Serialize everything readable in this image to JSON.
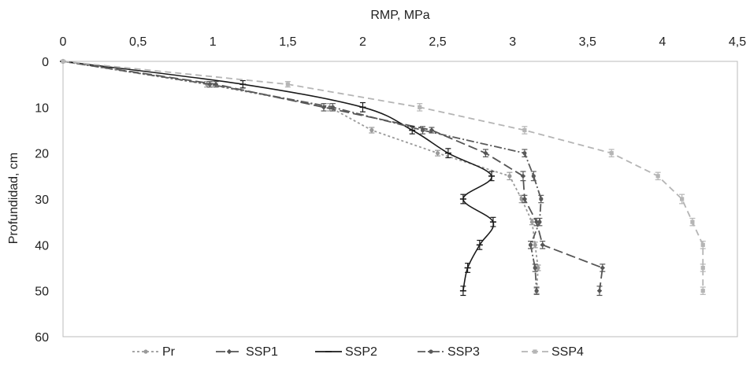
{
  "chart_data": {
    "type": "line",
    "xlabel": "RMP, MPa",
    "ylabel": "Profundidad, cm",
    "xlim": [
      0,
      4.5
    ],
    "ylim": [
      0,
      60
    ],
    "x_ticks": [
      "0",
      "0,5",
      "1",
      "1,5",
      "2",
      "2,5",
      "3",
      "3,5",
      "4",
      "4,5"
    ],
    "x_tick_values": [
      0,
      0.5,
      1,
      1.5,
      2,
      2.5,
      3,
      3.5,
      4,
      4.5
    ],
    "y_ticks": [
      "0",
      "10",
      "20",
      "30",
      "40",
      "50",
      "60"
    ],
    "y_tick_values": [
      0,
      10,
      20,
      30,
      40,
      50,
      60
    ],
    "x_axis_position": "top",
    "y_axis_inverted": true,
    "grid": false,
    "legend_position": "bottom",
    "depth": [
      0,
      5,
      10,
      15,
      20,
      25,
      30,
      35,
      40,
      45,
      50
    ],
    "series": [
      {
        "name": "Pr",
        "color": "#9a9a9a",
        "dash": "3,3",
        "marker": "circle",
        "rmp": [
          0,
          0.96,
          1.78,
          2.06,
          2.5,
          2.98,
          3.06,
          3.13,
          3.15,
          3.17,
          3.16
        ],
        "err": [
          0,
          0.03,
          0.04,
          0.03,
          0.03,
          0.04,
          0.04,
          0.03,
          0.03,
          0.03,
          0.03
        ]
      },
      {
        "name": "SSP1",
        "color": "#555555",
        "dash": "12,5",
        "marker": "diamond",
        "rmp": [
          0,
          1.02,
          1.74,
          2.46,
          2.82,
          3.07,
          3.08,
          3.16,
          3.2,
          3.6,
          3.58
        ],
        "err": [
          0,
          0.03,
          0.04,
          0.03,
          0.04,
          0.05,
          0.04,
          0.04,
          0.04,
          0.04,
          0.05
        ]
      },
      {
        "name": "SSP2",
        "color": "#1a1a1a",
        "dash": "",
        "marker": "dash",
        "rmp": [
          0,
          1.2,
          2.0,
          2.33,
          2.57,
          2.86,
          2.67,
          2.87,
          2.78,
          2.7,
          2.67
        ],
        "err": [
          0,
          0.04,
          0.05,
          0.04,
          0.05,
          0.05,
          0.05,
          0.05,
          0.05,
          0.05,
          0.05
        ]
      },
      {
        "name": "SSP3",
        "color": "#5a5a5a",
        "dash": "10,3,2,3",
        "marker": "circle",
        "rmp": [
          0,
          0.98,
          1.8,
          2.4,
          3.08,
          3.14,
          3.19,
          3.18,
          3.12,
          3.15,
          3.16
        ],
        "err": [
          0,
          0.03,
          0.04,
          0.04,
          0.04,
          0.05,
          0.04,
          0.04,
          0.04,
          0.04,
          0.04
        ]
      },
      {
        "name": "SSP4",
        "color": "#b5b5b5",
        "dash": "8,5",
        "marker": "square",
        "rmp": [
          0,
          1.5,
          2.38,
          3.08,
          3.66,
          3.97,
          4.13,
          4.2,
          4.27,
          4.27,
          4.27
        ],
        "err": [
          0,
          0.03,
          0.04,
          0.04,
          0.04,
          0.04,
          0.05,
          0.04,
          0.04,
          0.04,
          0.04
        ]
      }
    ]
  }
}
